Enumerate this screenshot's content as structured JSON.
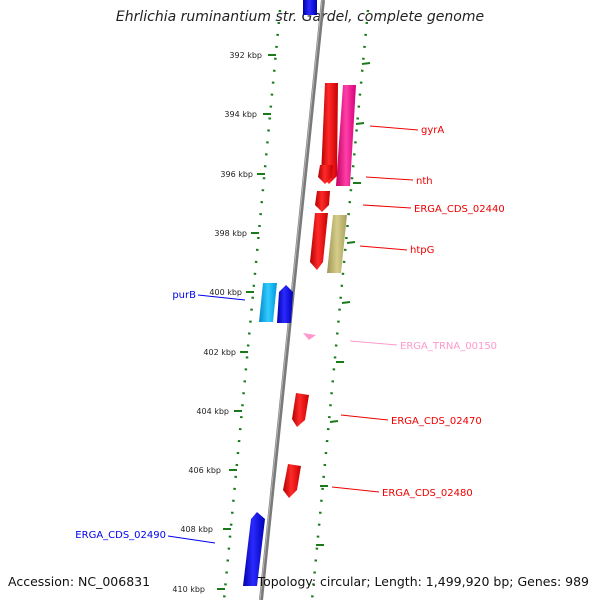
{
  "title": "Ehrlichia ruminantium str. Gardel, complete genome",
  "footer": {
    "accession": "Accession: NC_006831",
    "summary": "Topology: circular; Length: 1,499,920 bp; Genes: 989"
  },
  "colors": {
    "backbone": "#808080",
    "ticks": "#1a7a1a",
    "cds_forward": "#ee0000",
    "cds_reverse": "#0000ee",
    "trna": "#ff99cc"
  },
  "ticks": [
    "392 kbp",
    "394 kbp",
    "396 kbp",
    "398 kbp",
    "400 kbp",
    "402 kbp",
    "404 kbp",
    "406 kbp",
    "408 kbp",
    "410 kbp"
  ],
  "genes": [
    {
      "name": "gyrA",
      "strand": "forward",
      "color": "#ee0000"
    },
    {
      "name": "nth",
      "strand": "forward",
      "color": "#ee0000"
    },
    {
      "name": "ERGA_CDS_02440",
      "strand": "forward",
      "color": "#ee0000"
    },
    {
      "name": "htpG",
      "strand": "forward",
      "color": "#ee0000"
    },
    {
      "name": "purB",
      "strand": "reverse",
      "color": "#0000ee"
    },
    {
      "name": "ERGA_TRNA_00150",
      "strand": "forward",
      "color": "#ff99cc"
    },
    {
      "name": "ERGA_CDS_02470",
      "strand": "forward",
      "color": "#ee0000"
    },
    {
      "name": "ERGA_CDS_02480",
      "strand": "forward",
      "color": "#ee0000"
    },
    {
      "name": "ERGA_CDS_02490",
      "strand": "reverse",
      "color": "#0000ee"
    }
  ]
}
